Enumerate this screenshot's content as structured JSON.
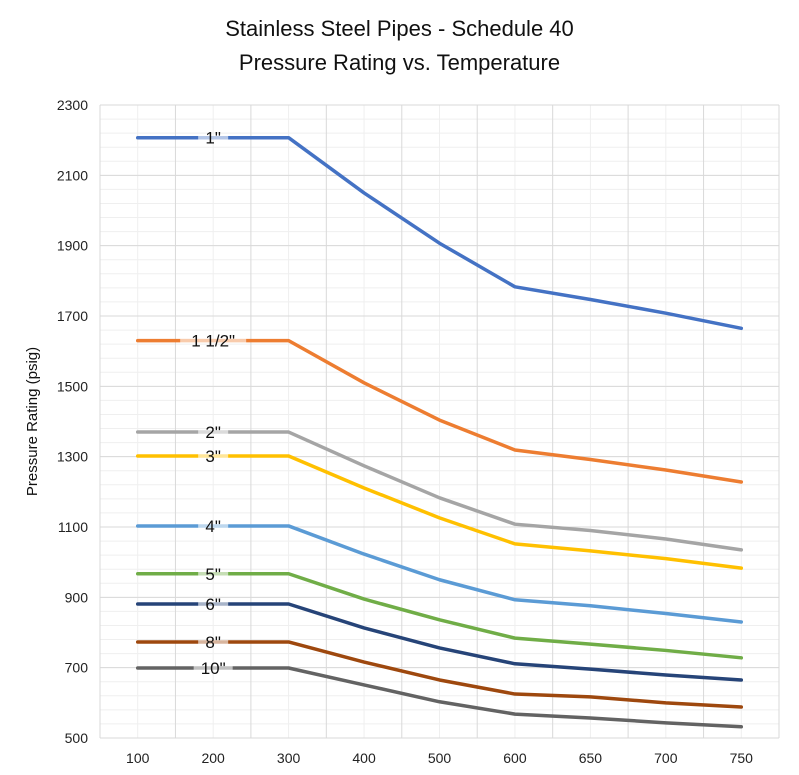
{
  "chart_data": {
    "type": "line",
    "title": [
      "Stainless Steel Pipes - Schedule 40",
      "Pressure Rating vs. Temperature"
    ],
    "xlabel": "",
    "ylabel": "Pressure Rating (psig)",
    "categories": [
      "100",
      "200",
      "300",
      "400",
      "500",
      "600",
      "650",
      "700",
      "750"
    ],
    "ylim": [
      500,
      2300
    ],
    "yticks": [
      "500",
      "700",
      "900",
      "1100",
      "1300",
      "1500",
      "1700",
      "1900",
      "2100",
      "2300"
    ],
    "grid": true,
    "legend": "inline labels on lines",
    "series": [
      {
        "name": "1\"",
        "color": "#4472C4",
        "values": [
          2207,
          2207,
          2207,
          2050,
          1907,
          1783,
          1747,
          1708,
          1665
        ]
      },
      {
        "name": "1 1/2\"",
        "color": "#ED7D31",
        "values": [
          1630,
          1630,
          1630,
          1510,
          1404,
          1319,
          1292,
          1262,
          1228
        ]
      },
      {
        "name": "2\"",
        "color": "#A5A5A5",
        "values": [
          1370,
          1370,
          1370,
          1274,
          1183,
          1108,
          1090,
          1066,
          1035
        ]
      },
      {
        "name": "3\"",
        "color": "#FFC000",
        "values": [
          1302,
          1302,
          1302,
          1211,
          1126,
          1052,
          1032,
          1010,
          983
        ]
      },
      {
        "name": "4\"",
        "color": "#5B9BD5",
        "values": [
          1103,
          1103,
          1103,
          1023,
          950,
          893,
          876,
          854,
          830
        ]
      },
      {
        "name": "5\"",
        "color": "#70AD47",
        "values": [
          967,
          967,
          967,
          895,
          836,
          784,
          767,
          749,
          728
        ]
      },
      {
        "name": "6\"",
        "color": "#264478",
        "values": [
          881,
          881,
          881,
          813,
          756,
          711,
          696,
          679,
          665
        ]
      },
      {
        "name": "8\"",
        "color": "#9E480E",
        "values": [
          773,
          773,
          773,
          716,
          665,
          625,
          617,
          600,
          588
        ]
      },
      {
        "name": "10\"",
        "color": "#636363",
        "values": [
          699,
          699,
          699,
          651,
          603,
          568,
          557,
          543,
          532
        ]
      }
    ]
  }
}
